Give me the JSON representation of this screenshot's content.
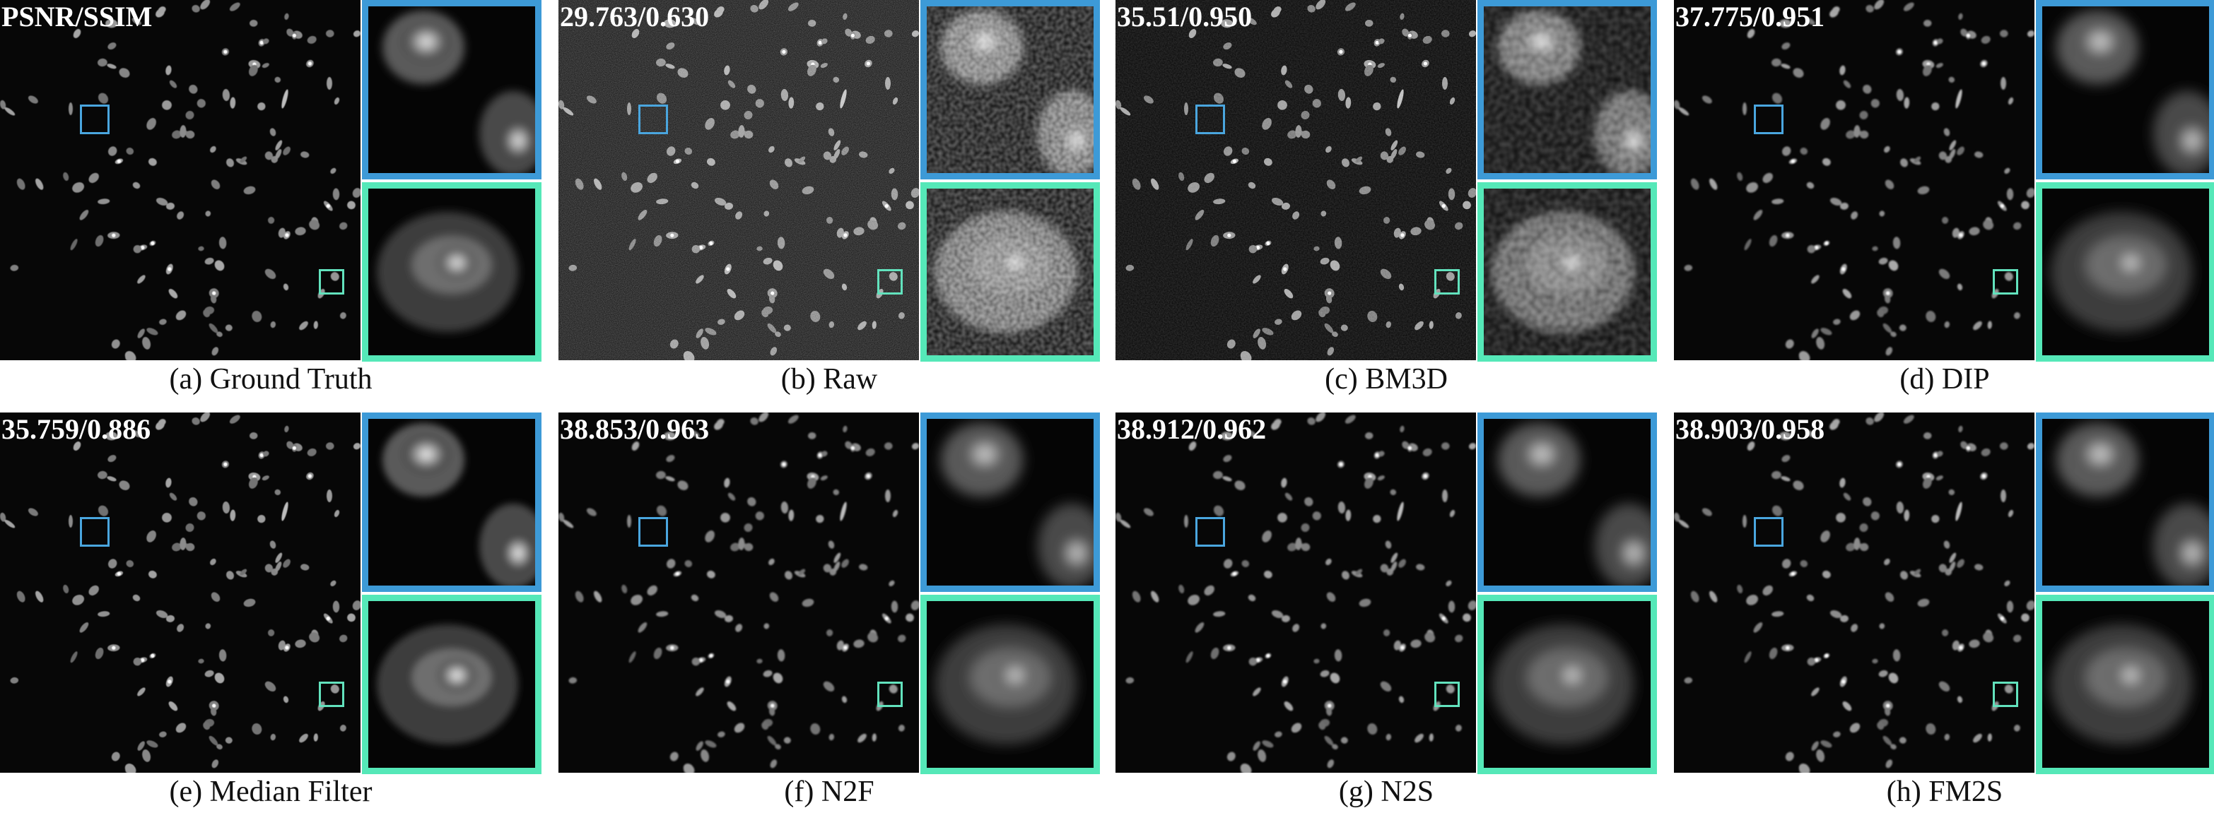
{
  "figure": {
    "panels": [
      {
        "caption": "(a) Ground Truth",
        "metric": "PSNR/SSIM",
        "style": "smooth"
      },
      {
        "caption": "(b) Raw",
        "metric": "29.763/0.630",
        "style": "noisy"
      },
      {
        "caption": "(c) BM3D",
        "metric": "35.51/0.950",
        "style": "grainy"
      },
      {
        "caption": "(d) DIP",
        "metric": "37.775/0.951",
        "style": "blurred"
      },
      {
        "caption": "(e) Median Filter",
        "metric": "35.759/0.886",
        "style": "blocky"
      },
      {
        "caption": "(f) N2F",
        "metric": "38.853/0.963",
        "style": "blurred"
      },
      {
        "caption": "(g) N2S",
        "metric": "38.912/0.962",
        "style": "blurred"
      },
      {
        "caption": "(h) FM2S",
        "metric": "38.903/0.958",
        "style": "blurred"
      }
    ],
    "colors": {
      "roi_blue": "#4aa6df",
      "roi_green": "#62e2bd",
      "background": "#060606"
    }
  }
}
